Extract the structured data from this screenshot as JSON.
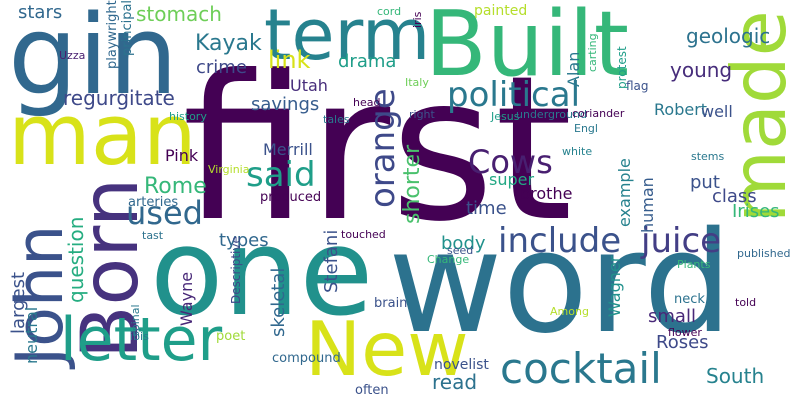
{
  "words": [
    {
      "text": "first",
      "color": "#440154"
    },
    {
      "text": "one",
      "color": "#21918c"
    },
    {
      "text": "word",
      "color": "#2c728e"
    },
    {
      "text": "gin",
      "color": "#31688e"
    },
    {
      "text": "Built",
      "color": "#35b779"
    },
    {
      "text": "man",
      "color": "#d8e219"
    },
    {
      "text": "term",
      "color": "#26828e"
    },
    {
      "text": "made",
      "color": "#a0da39"
    },
    {
      "text": "John",
      "color": "#3b528b"
    },
    {
      "text": "Born",
      "color": "#46327e"
    },
    {
      "text": "New",
      "color": "#d8e219"
    },
    {
      "text": "letter",
      "color": "#1f9e89"
    },
    {
      "text": "cocktail",
      "color": "#2a788e"
    },
    {
      "text": "include",
      "color": "#3b528b"
    },
    {
      "text": "juice",
      "color": "#433e85"
    },
    {
      "text": "political",
      "color": "#2a788e"
    },
    {
      "text": "said",
      "color": "#1f9e89"
    },
    {
      "text": "orange",
      "color": "#3e4989"
    },
    {
      "text": "used",
      "color": "#31688e"
    },
    {
      "text": "Cows",
      "color": "#481f70"
    },
    {
      "text": "link",
      "color": "#d8e219"
    },
    {
      "text": "shorter",
      "color": "#4ac16d"
    },
    {
      "text": "question",
      "color": "#26ad81"
    },
    {
      "text": "Rome",
      "color": "#35b779"
    },
    {
      "text": "Kayak",
      "color": "#2a788e"
    },
    {
      "text": "stomach",
      "color": "#6ece58"
    },
    {
      "text": "regurgitate",
      "color": "#3e4989"
    },
    {
      "text": "geologic",
      "color": "#2c728e"
    },
    {
      "text": "young",
      "color": "#472d7b"
    },
    {
      "text": "South",
      "color": "#26828e"
    },
    {
      "text": "read",
      "color": "#2c728e"
    },
    {
      "text": "stars",
      "color": "#31688e"
    },
    {
      "text": "largest",
      "color": "#3b528b"
    },
    {
      "text": "savings",
      "color": "#365c8d"
    },
    {
      "text": "crime",
      "color": "#3e4989"
    },
    {
      "text": "drama",
      "color": "#1f9e89"
    },
    {
      "text": "time",
      "color": "#3b528b"
    },
    {
      "text": "body",
      "color": "#21918c"
    },
    {
      "text": "types",
      "color": "#31688e"
    },
    {
      "text": "skeletal",
      "color": "#31688e"
    },
    {
      "text": "Stefani",
      "color": "#3b528b"
    },
    {
      "text": "Wagner",
      "color": "#21918c"
    },
    {
      "text": "human",
      "color": "#365c8d"
    },
    {
      "text": "example",
      "color": "#26828e"
    },
    {
      "text": "put",
      "color": "#3b528b"
    },
    {
      "text": "class",
      "color": "#3e4989"
    },
    {
      "text": "Irises",
      "color": "#35b779"
    },
    {
      "text": "Roses",
      "color": "#3e4989"
    },
    {
      "text": "small",
      "color": "#482878"
    },
    {
      "text": "Robert",
      "color": "#2a788e"
    },
    {
      "text": "Alan",
      "color": "#2a788e"
    },
    {
      "text": "super",
      "color": "#22a884"
    },
    {
      "text": "brothe",
      "color": "#440154"
    },
    {
      "text": "well",
      "color": "#3b528b"
    },
    {
      "text": "Pink",
      "color": "#440154"
    },
    {
      "text": "Merrill",
      "color": "#3b528b"
    },
    {
      "text": "Utah",
      "color": "#472d7b"
    },
    {
      "text": "neutral",
      "color": "#2a788e"
    },
    {
      "text": "Wayne",
      "color": "#482878"
    },
    {
      "text": "novelist",
      "color": "#3b528b"
    },
    {
      "text": "painted",
      "color": "#b5de2b"
    },
    {
      "text": "playwright",
      "color": "#31688e"
    },
    {
      "text": "principal",
      "color": "#2c728e"
    },
    {
      "text": "cord",
      "color": "#35b779"
    },
    {
      "text": "flag",
      "color": "#3b528b"
    },
    {
      "text": "protest",
      "color": "#1f9e89"
    },
    {
      "text": "carting",
      "color": "#35b779"
    },
    {
      "text": "iris",
      "color": "#440154"
    },
    {
      "text": "Uzza",
      "color": "#481f70"
    },
    {
      "text": "history",
      "color": "#1f9e89"
    },
    {
      "text": "tales",
      "color": "#2a788e"
    },
    {
      "text": "head",
      "color": "#440154"
    },
    {
      "text": "Italy",
      "color": "#6ece58"
    },
    {
      "text": "Jesus",
      "color": "#1f9e89"
    },
    {
      "text": "underground",
      "color": "#2a788e"
    },
    {
      "text": "Engl",
      "color": "#2a788e"
    },
    {
      "text": "right",
      "color": "#3b528b"
    },
    {
      "text": "coriander",
      "color": "#440154"
    },
    {
      "text": "white",
      "color": "#26828e"
    },
    {
      "text": "stems",
      "color": "#2a788e"
    },
    {
      "text": "Virginia",
      "color": "#b5de2b"
    },
    {
      "text": "arteries",
      "color": "#31688e"
    },
    {
      "text": "tast",
      "color": "#2c728e"
    },
    {
      "text": "produced",
      "color": "#440154"
    },
    {
      "text": "touched",
      "color": "#440154"
    },
    {
      "text": "seed",
      "color": "#3b528b"
    },
    {
      "text": "Change",
      "color": "#35b779"
    },
    {
      "text": "published",
      "color": "#31688e"
    },
    {
      "text": "Plants",
      "color": "#35b779"
    },
    {
      "text": "spinal",
      "color": "#2a788e"
    },
    {
      "text": "ibis",
      "color": "#2a788e"
    },
    {
      "text": "Descriptive",
      "color": "#3e4989"
    },
    {
      "text": "poet",
      "color": "#a0da39"
    },
    {
      "text": "brain",
      "color": "#3b528b"
    },
    {
      "text": "Among",
      "color": "#b5de2b"
    },
    {
      "text": "neck",
      "color": "#2c728e"
    },
    {
      "text": "told",
      "color": "#440154"
    },
    {
      "text": "flower",
      "color": "#440154"
    },
    {
      "text": "compound",
      "color": "#31688e"
    },
    {
      "text": "often",
      "color": "#3b528b"
    }
  ]
}
